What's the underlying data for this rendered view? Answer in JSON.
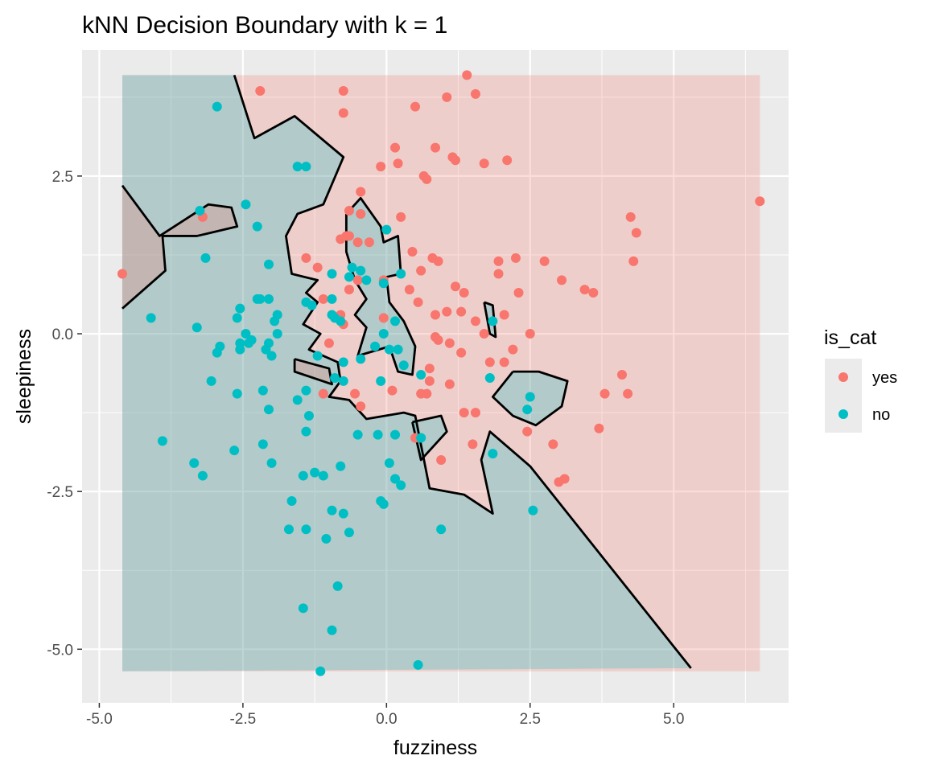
{
  "chart_data": {
    "type": "scatter",
    "title": "kNN Decision Boundary with k =  1",
    "xlabel": "fuzziness",
    "ylabel": "sleepiness",
    "xlim": [
      -5.3,
      7.0
    ],
    "ylim": [
      -5.85,
      4.5
    ],
    "x_ticks": [
      -5.0,
      -2.5,
      0.0,
      2.5,
      5.0
    ],
    "x_tick_labels": [
      "-5.0",
      "-2.5",
      "0.0",
      "2.5",
      "5.0"
    ],
    "y_ticks": [
      -5.0,
      -2.5,
      0.0,
      2.5
    ],
    "y_tick_labels": [
      "-5.0",
      "-2.5",
      "0.0",
      "2.5"
    ],
    "grid": true,
    "legend": {
      "title": "is_cat",
      "position": "right"
    },
    "series": [
      {
        "name": "yes",
        "color": "#f8766d",
        "points": [
          [
            1.4,
            4.1
          ],
          [
            -2.2,
            3.85
          ],
          [
            -0.75,
            3.85
          ],
          [
            1.05,
            3.75
          ],
          [
            1.55,
            3.8
          ],
          [
            0.5,
            3.6
          ],
          [
            -0.75,
            3.5
          ],
          [
            0.15,
            2.95
          ],
          [
            0.85,
            2.95
          ],
          [
            -0.1,
            2.65
          ],
          [
            0.2,
            2.7
          ],
          [
            1.15,
            2.8
          ],
          [
            1.2,
            2.75
          ],
          [
            1.7,
            2.7
          ],
          [
            2.1,
            2.75
          ],
          [
            0.65,
            2.5
          ],
          [
            0.7,
            2.45
          ],
          [
            -0.45,
            2.25
          ],
          [
            -0.65,
            1.95
          ],
          [
            -3.2,
            1.85
          ],
          [
            -0.45,
            1.9
          ],
          [
            0.25,
            1.85
          ],
          [
            4.25,
            1.85
          ],
          [
            6.5,
            2.1
          ],
          [
            4.35,
            1.6
          ],
          [
            -0.7,
            1.55
          ],
          [
            -0.65,
            1.55
          ],
          [
            -0.8,
            1.5
          ],
          [
            -0.5,
            1.45
          ],
          [
            -0.3,
            1.45
          ],
          [
            0.45,
            1.3
          ],
          [
            0.8,
            1.2
          ],
          [
            0.9,
            1.15
          ],
          [
            -1.4,
            1.2
          ],
          [
            1.95,
            1.15
          ],
          [
            2.25,
            1.2
          ],
          [
            2.75,
            1.15
          ],
          [
            4.3,
            1.15
          ],
          [
            -1.2,
            1.05
          ],
          [
            0.6,
            1.0
          ],
          [
            1.95,
            0.95
          ],
          [
            -4.6,
            0.95
          ],
          [
            3.05,
            0.85
          ],
          [
            -0.5,
            0.85
          ],
          [
            -0.05,
            0.85
          ],
          [
            1.2,
            0.75
          ],
          [
            0.4,
            0.7
          ],
          [
            1.35,
            0.65
          ],
          [
            2.3,
            0.65
          ],
          [
            3.45,
            0.7
          ],
          [
            3.6,
            0.65
          ],
          [
            -1.1,
            0.55
          ],
          [
            -0.65,
            0.7
          ],
          [
            0.55,
            0.5
          ],
          [
            1.05,
            0.35
          ],
          [
            -0.8,
            0.3
          ],
          [
            1.3,
            0.35
          ],
          [
            0.85,
            0.3
          ],
          [
            2.05,
            0.3
          ],
          [
            -0.05,
            0.25
          ],
          [
            -0.75,
            0.15
          ],
          [
            1.55,
            0.2
          ],
          [
            1.7,
            0.0
          ],
          [
            2.5,
            0.0
          ],
          [
            0.85,
            -0.05
          ],
          [
            0.9,
            -0.1
          ],
          [
            1.1,
            -0.15
          ],
          [
            -1.0,
            -0.15
          ],
          [
            2.2,
            -0.25
          ],
          [
            1.3,
            -0.3
          ],
          [
            0.75,
            -0.55
          ],
          [
            1.8,
            -0.45
          ],
          [
            2.05,
            -0.45
          ],
          [
            4.1,
            -0.65
          ],
          [
            0.75,
            -0.75
          ],
          [
            1.1,
            -0.8
          ],
          [
            0.6,
            -0.95
          ],
          [
            0.7,
            -0.95
          ],
          [
            0.1,
            -0.9
          ],
          [
            3.8,
            -0.95
          ],
          [
            4.2,
            -0.95
          ],
          [
            -1.1,
            -0.95
          ],
          [
            -0.55,
            -0.95
          ],
          [
            -0.45,
            -1.15
          ],
          [
            1.35,
            -1.25
          ],
          [
            1.55,
            -1.25
          ],
          [
            3.7,
            -1.5
          ],
          [
            2.45,
            -1.55
          ],
          [
            0.5,
            -1.65
          ],
          [
            2.9,
            -1.75
          ],
          [
            1.5,
            -1.75
          ],
          [
            0.95,
            -2.0
          ],
          [
            3.1,
            -2.3
          ],
          [
            3.0,
            -2.35
          ]
        ]
      },
      {
        "name": "no",
        "color": "#00bfc4",
        "points": [
          [
            -2.95,
            3.6
          ],
          [
            -1.55,
            2.65
          ],
          [
            -1.4,
            2.65
          ],
          [
            -2.45,
            2.05
          ],
          [
            -3.25,
            1.95
          ],
          [
            -2.25,
            1.7
          ],
          [
            0.0,
            1.65
          ],
          [
            -3.15,
            1.2
          ],
          [
            -2.05,
            1.1
          ],
          [
            -0.6,
            1.05
          ],
          [
            -0.45,
            1.0
          ],
          [
            -0.95,
            0.95
          ],
          [
            0.25,
            0.95
          ],
          [
            -0.65,
            0.9
          ],
          [
            -0.35,
            0.85
          ],
          [
            -0.05,
            0.8
          ],
          [
            -2.05,
            0.55
          ],
          [
            -2.25,
            0.55
          ],
          [
            -2.2,
            0.55
          ],
          [
            -0.95,
            0.55
          ],
          [
            -1.4,
            0.5
          ],
          [
            -1.3,
            0.45
          ],
          [
            -2.55,
            0.4
          ],
          [
            -1.9,
            0.3
          ],
          [
            -4.1,
            0.25
          ],
          [
            -2.6,
            0.25
          ],
          [
            -1.95,
            0.2
          ],
          [
            -0.9,
            0.25
          ],
          [
            -0.8,
            0.2
          ],
          [
            -0.95,
            0.3
          ],
          [
            0.15,
            0.2
          ],
          [
            1.85,
            0.2
          ],
          [
            -3.3,
            0.1
          ],
          [
            -2.45,
            0.0
          ],
          [
            -1.9,
            0.0
          ],
          [
            -0.05,
            0.0
          ],
          [
            -2.55,
            -0.15
          ],
          [
            -2.4,
            -0.15
          ],
          [
            -2.35,
            -0.1
          ],
          [
            -2.05,
            -0.15
          ],
          [
            -0.2,
            -0.2
          ],
          [
            -2.9,
            -0.2
          ],
          [
            -2.55,
            -0.25
          ],
          [
            -2.1,
            -0.25
          ],
          [
            0.05,
            -0.25
          ],
          [
            0.2,
            -0.25
          ],
          [
            -2.95,
            -0.3
          ],
          [
            -2.0,
            -0.35
          ],
          [
            -1.2,
            -0.35
          ],
          [
            -0.45,
            -0.4
          ],
          [
            -0.75,
            -0.45
          ],
          [
            0.3,
            -0.5
          ],
          [
            0.6,
            -0.65
          ],
          [
            -0.9,
            -0.7
          ],
          [
            1.8,
            -0.7
          ],
          [
            -3.05,
            -0.75
          ],
          [
            -0.75,
            -0.75
          ],
          [
            -0.1,
            -0.75
          ],
          [
            -2.15,
            -0.9
          ],
          [
            -2.6,
            -0.95
          ],
          [
            -1.4,
            -0.9
          ],
          [
            2.5,
            -1.0
          ],
          [
            -1.55,
            -1.05
          ],
          [
            -2.05,
            -1.2
          ],
          [
            -1.35,
            -1.3
          ],
          [
            2.45,
            -1.2
          ],
          [
            -1.4,
            -1.55
          ],
          [
            -0.5,
            -1.6
          ],
          [
            -0.15,
            -1.6
          ],
          [
            0.15,
            -1.6
          ],
          [
            0.6,
            -1.65
          ],
          [
            -3.9,
            -1.7
          ],
          [
            -2.15,
            -1.75
          ],
          [
            -2.65,
            -1.85
          ],
          [
            1.85,
            -1.9
          ],
          [
            -2.0,
            -2.05
          ],
          [
            -3.35,
            -2.05
          ],
          [
            0.05,
            -2.05
          ],
          [
            -0.8,
            -2.1
          ],
          [
            -3.2,
            -2.25
          ],
          [
            -1.45,
            -2.25
          ],
          [
            -1.25,
            -2.2
          ],
          [
            -1.1,
            -2.25
          ],
          [
            0.15,
            -2.3
          ],
          [
            0.25,
            -2.4
          ],
          [
            -1.65,
            -2.65
          ],
          [
            -0.1,
            -2.65
          ],
          [
            -0.05,
            -2.7
          ],
          [
            -0.95,
            -2.8
          ],
          [
            -0.75,
            -2.85
          ],
          [
            2.55,
            -2.8
          ],
          [
            -1.7,
            -3.1
          ],
          [
            -1.4,
            -3.1
          ],
          [
            0.95,
            -3.1
          ],
          [
            -0.65,
            -3.15
          ],
          [
            -1.05,
            -3.25
          ],
          [
            -0.85,
            -4.0
          ],
          [
            -1.45,
            -4.35
          ],
          [
            -0.95,
            -4.7
          ],
          [
            0.55,
            -5.25
          ],
          [
            -1.15,
            -5.35
          ]
        ]
      }
    ],
    "decision_region": {
      "xlim": [
        -4.6,
        6.5
      ],
      "ylim": [
        -5.35,
        4.1
      ],
      "classes": [
        {
          "name": "yes",
          "color": "#f8766d"
        },
        {
          "name": "no",
          "color": "#00bfc4"
        }
      ],
      "boundary_lines": [
        [
          [
            -2.65,
            4.1
          ],
          [
            -2.3,
            3.1
          ],
          [
            -1.6,
            3.45
          ],
          [
            -0.75,
            2.8
          ],
          [
            -1.1,
            2.05
          ],
          [
            -1.55,
            1.9
          ],
          [
            -1.75,
            1.55
          ],
          [
            -1.65,
            0.95
          ],
          [
            -1.2,
            0.85
          ],
          [
            -1.4,
            0.65
          ],
          [
            -1.2,
            0.5
          ],
          [
            -1.45,
            0.15
          ],
          [
            -1.15,
            0.0
          ],
          [
            -1.35,
            -0.25
          ],
          [
            -0.85,
            -0.45
          ],
          [
            -0.8,
            -0.75
          ],
          [
            -1.0,
            -1.0
          ],
          [
            -0.65,
            -1.05
          ],
          [
            -0.35,
            -1.35
          ],
          [
            0.3,
            -1.25
          ],
          [
            0.5,
            -1.3
          ],
          [
            0.75,
            -2.45
          ],
          [
            1.35,
            -2.55
          ],
          [
            1.85,
            -2.85
          ],
          [
            1.65,
            -2.0
          ],
          [
            1.8,
            -1.55
          ],
          [
            2.5,
            -2.1
          ],
          [
            5.3,
            -5.3
          ]
        ],
        [
          [
            -4.6,
            2.35
          ],
          [
            -3.95,
            1.55
          ],
          [
            -3.1,
            2.05
          ],
          [
            -2.7,
            2.0
          ],
          [
            -2.6,
            1.7
          ],
          [
            -3.3,
            1.55
          ],
          [
            -3.9,
            1.55
          ],
          [
            -3.85,
            1.0
          ],
          [
            -4.6,
            0.4
          ]
        ],
        [
          [
            -0.7,
            1.9
          ],
          [
            -0.45,
            2.15
          ],
          [
            -0.1,
            1.7
          ],
          [
            -0.05,
            1.45
          ],
          [
            0.2,
            1.55
          ],
          [
            0.25,
            0.95
          ],
          [
            0.0,
            0.9
          ],
          [
            0.05,
            0.5
          ],
          [
            0.3,
            0.2
          ],
          [
            0.5,
            -0.2
          ],
          [
            0.45,
            -0.65
          ],
          [
            0.2,
            -0.6
          ],
          [
            0.05,
            -0.2
          ],
          [
            -0.5,
            -0.35
          ],
          [
            -0.35,
            0.1
          ],
          [
            -0.55,
            0.3
          ],
          [
            -0.35,
            0.55
          ],
          [
            -0.55,
            0.85
          ],
          [
            -0.7,
            1.3
          ],
          [
            -0.7,
            1.9
          ]
        ],
        [
          [
            -1.6,
            -0.4
          ],
          [
            -1.0,
            -0.55
          ],
          [
            -0.95,
            -0.8
          ],
          [
            -1.6,
            -0.6
          ],
          [
            -1.6,
            -0.4
          ]
        ],
        [
          [
            1.7,
            0.5
          ],
          [
            1.85,
            0.45
          ],
          [
            1.9,
            -0.05
          ],
          [
            1.8,
            0.0
          ],
          [
            1.7,
            0.5
          ]
        ],
        [
          [
            2.2,
            -0.6
          ],
          [
            2.65,
            -0.6
          ],
          [
            3.15,
            -0.75
          ],
          [
            3.05,
            -1.15
          ],
          [
            2.6,
            -1.45
          ],
          [
            2.2,
            -1.3
          ],
          [
            1.85,
            -1.0
          ],
          [
            2.2,
            -0.6
          ]
        ],
        [
          [
            0.45,
            -1.4
          ],
          [
            0.95,
            -1.3
          ],
          [
            1.05,
            -1.55
          ],
          [
            0.6,
            -2.0
          ],
          [
            0.45,
            -1.4
          ]
        ]
      ]
    }
  }
}
